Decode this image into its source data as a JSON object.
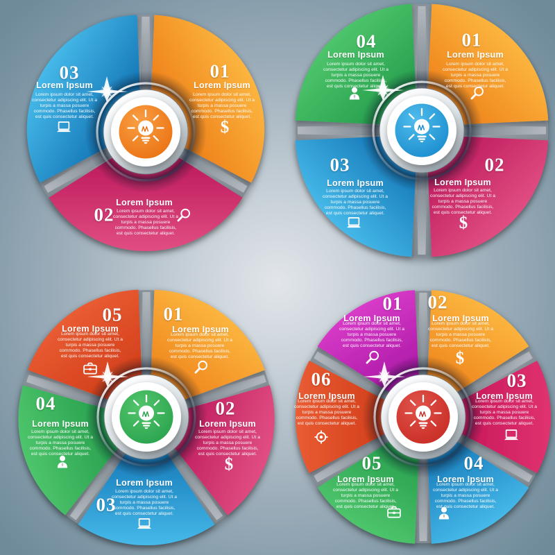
{
  "page": {
    "background_center": "#e2e6ea",
    "background_edge": "#6f8b9a",
    "base_gray": "#8a939b",
    "text_color": "#ffffff"
  },
  "charts": [
    {
      "name": "three-segment-circle",
      "hub": {
        "icon": "lightbulb-icon",
        "color_light": "#f99e43",
        "color_dark": "#e96f0e"
      },
      "items": [
        {
          "number": "01",
          "title": "Lorem Ipsum",
          "body": "Lorem ipsum dolor sit amet, consectetur adipiscing elit. Ut a turpis a massa posuere commodo. Phasellus facilisis, est quis consectetur aliquet.",
          "icon": "dollar-icon",
          "color_light": "#fcb53f",
          "color_dark": "#ed7d17",
          "color_shadow": "#87380b"
        },
        {
          "number": "02",
          "title": "Lorem Ipsum",
          "body": "Lorem ipsum dolor sit amet, consectetur adipiscing elit. Ut a turpis a massa posuere commodo. Phasellus facilisis, est quis consectetur aliquet.",
          "icon": "search-icon",
          "color_light": "#e14e82",
          "color_dark": "#bb175a",
          "color_shadow": "#640e31"
        },
        {
          "number": "03",
          "title": "Lorem Ipsum",
          "body": "Lorem ipsum dolor sit amet, consectetur adipiscing elit. Ut a turpis a massa posuere commodo. Phasellus facilisis, est quis consectetur aliquet.",
          "icon": "laptop-icon",
          "color_light": "#46b9e9",
          "color_dark": "#1173b4",
          "color_shadow": "#0d3c63"
        }
      ]
    },
    {
      "name": "four-segment-circle",
      "hub": {
        "icon": "lightbulb-icon",
        "color_light": "#4fbceb",
        "color_dark": "#1789cd"
      },
      "items": [
        {
          "number": "01",
          "title": "Lorem Ipsum",
          "body": "Lorem ipsum dolor sit amet, consectetur adipiscing elit. Ut a turpis a massa posuere commodo. Phasellus facilisis, est quis consectetur aliquet.",
          "icon": "search-icon",
          "color_light": "#fcb53f",
          "color_dark": "#ed7d17",
          "color_shadow": "#87380b"
        },
        {
          "number": "02",
          "title": "Lorem Ipsum",
          "body": "Lorem ipsum dolor sit amet, consectetur adipiscing elit. Ut a turpis a massa posuere commodo. Phasellus facilisis, est quis consectetur aliquet.",
          "icon": "dollar-icon",
          "color_light": "#e14e82",
          "color_dark": "#bb175a",
          "color_shadow": "#640e31"
        },
        {
          "number": "03",
          "title": "Lorem Ipsum",
          "body": "Lorem ipsum dolor sit amet, consectetur adipiscing elit. Ut a turpis a massa posuere commodo. Phasellus facilisis, est quis consectetur aliquet.",
          "icon": "laptop-icon",
          "color_light": "#46b9e9",
          "color_dark": "#1173b4",
          "color_shadow": "#0d3c63"
        },
        {
          "number": "04",
          "title": "Lorem Ipsum",
          "body": "Lorem ipsum dolor sit amet, consectetur adipiscing elit. Ut a turpis a massa posuere commodo. Phasellus facilisis, est quis consectetur aliquet.",
          "icon": "user-icon",
          "color_light": "#4ec56c",
          "color_dark": "#219a49",
          "color_shadow": "#0e5526"
        }
      ]
    },
    {
      "name": "five-segment-circle",
      "hub": {
        "icon": "lightbulb-icon",
        "color_light": "#52c46c",
        "color_dark": "#27a14b"
      },
      "items": [
        {
          "number": "01",
          "title": "Lorem Ipsum",
          "body": "Lorem ipsum dolor sit amet, consectetur adipiscing elit. Ut a turpis a massa posuere commodo. Phasellus facilisis, est quis consectetur aliquet.",
          "icon": "search-icon",
          "color_light": "#fcb53f",
          "color_dark": "#ed7d17",
          "color_shadow": "#87380b"
        },
        {
          "number": "02",
          "title": "Lorem Ipsum",
          "body": "Lorem ipsum dolor sit amet, consectetur adipiscing elit. Ut a turpis a massa posuere commodo. Phasellus facilisis, est quis consectetur aliquet.",
          "icon": "dollar-icon",
          "color_light": "#e14e82",
          "color_dark": "#bb175a",
          "color_shadow": "#640e31"
        },
        {
          "number": "03",
          "title": "Lorem Ipsum",
          "body": "Lorem ipsum dolor sit amet, consectetur adipiscing elit. Ut a turpis a massa posuere commodo. Phasellus facilisis, est quis consectetur aliquet.",
          "icon": "laptop-icon",
          "color_light": "#46b9e9",
          "color_dark": "#1173b4",
          "color_shadow": "#0d3c63"
        },
        {
          "number": "04",
          "title": "Lorem Ipsum",
          "body": "Lorem ipsum dolor sit amet, consectetur adipiscing elit. Ut a turpis a massa posuere commodo. Phasellus facilisis, est quis consectetur aliquet.",
          "icon": "user-icon",
          "color_light": "#4ec56c",
          "color_dark": "#219a49",
          "color_shadow": "#0e5526"
        },
        {
          "number": "05",
          "title": "Lorem Ipsum",
          "body": "Lorem ipsum dolor sit amet, consectetur adipiscing elit. Ut a turpis a massa posuere commodo. Phasellus facilisis, est quis consectetur aliquet.",
          "icon": "briefcase-icon",
          "color_light": "#ea5c33",
          "color_dark": "#cd3916",
          "color_shadow": "#741c07"
        }
      ]
    },
    {
      "name": "six-segment-circle",
      "hub": {
        "icon": "lightbulb-icon",
        "color_light": "#e0524a",
        "color_dark": "#c62a21"
      },
      "items": [
        {
          "number": "01",
          "title": "Lorem Ipsum",
          "body": "Lorem ipsum dolor sit amet, consectetur adipiscing elit. Ut a turpis a massa posuere commodo. Phasellus facilisis, est quis consectetur aliquet.",
          "icon": "search-icon",
          "color_light": "#d83bc8",
          "color_dark": "#a312a0",
          "color_shadow": "#58064f"
        },
        {
          "number": "02",
          "title": "Lorem Ipsum",
          "body": "Lorem ipsum dolor sit amet, consectetur adipiscing elit. Ut a turpis a massa posuere commodo. Phasellus facilisis, est quis consectetur aliquet.",
          "icon": "dollar-icon",
          "color_light": "#fcb53f",
          "color_dark": "#ed7d17",
          "color_shadow": "#87380b"
        },
        {
          "number": "03",
          "title": "Lorem Ipsum",
          "body": "Lorem ipsum dolor sit amet, consectetur adipiscing elit. Ut a turpis a massa posuere commodo. Phasellus facilisis, est quis consectetur aliquet.",
          "icon": "laptop-icon",
          "color_light": "#e0326f",
          "color_dark": "#c41458",
          "color_shadow": "#640e31"
        },
        {
          "number": "04",
          "title": "Lorem Ipsum",
          "body": "Lorem ipsum dolor sit amet, consectetur adipiscing elit. Ut a turpis a massa posuere commodo. Phasellus facilisis, est quis consectetur aliquet.",
          "icon": "user-icon",
          "color_light": "#46b9e9",
          "color_dark": "#1173b4",
          "color_shadow": "#0d3c63"
        },
        {
          "number": "05",
          "title": "Lorem Ipsum",
          "body": "Lorem ipsum dolor sit amet, consectetur adipiscing elit. Ut a turpis a massa posuere commodo. Phasellus facilisis, est quis consectetur aliquet.",
          "icon": "briefcase-icon",
          "color_light": "#4ec56c",
          "color_dark": "#219a49",
          "color_shadow": "#0e5526"
        },
        {
          "number": "06",
          "title": "Lorem Ipsum",
          "body": "Lorem ipsum dolor sit amet, consectetur adipiscing elit. Ut a turpis a massa posuere commodo. Phasellus facilisis, est quis consectetur aliquet.",
          "icon": "target-icon",
          "color_light": "#ea5c33",
          "color_dark": "#cd3916",
          "color_shadow": "#741c07"
        }
      ]
    }
  ]
}
